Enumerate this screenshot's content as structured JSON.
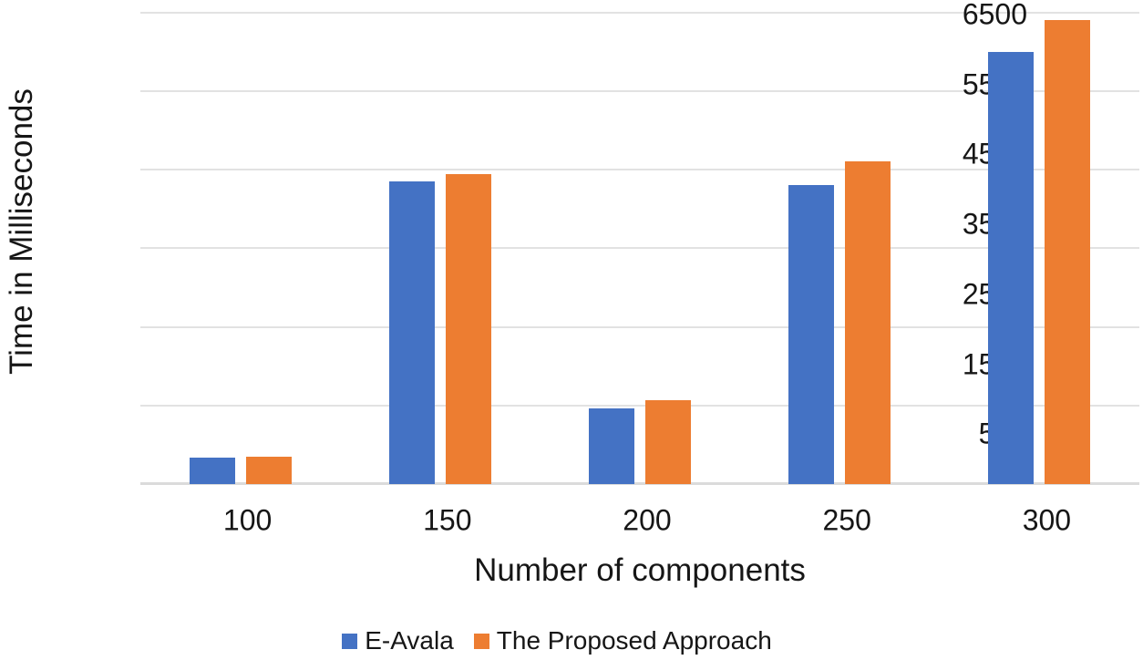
{
  "chart_data": {
    "type": "bar",
    "title": "",
    "xlabel": "Number of components",
    "ylabel": "Time in Milliseconds",
    "categories": [
      "100",
      "150",
      "200",
      "250",
      "300"
    ],
    "series": [
      {
        "name": "E-Avala",
        "color": "#4472C4",
        "values": [
          360,
          4170,
          1040,
          4120,
          5960
        ]
      },
      {
        "name": "The Proposed Approach",
        "color": "#ED7D31",
        "values": [
          380,
          4270,
          1160,
          4450,
          6390
        ]
      }
    ],
    "y_ticks": [
      "6500",
      "5500",
      "4500",
      "3500",
      "2500",
      "1500",
      "500"
    ],
    "ylim": [
      0,
      6500
    ],
    "grid": "horizontal",
    "gridline_color": "#e2e2e2",
    "axis_line_color": "#dbdbdb",
    "legend_position": "bottom"
  }
}
